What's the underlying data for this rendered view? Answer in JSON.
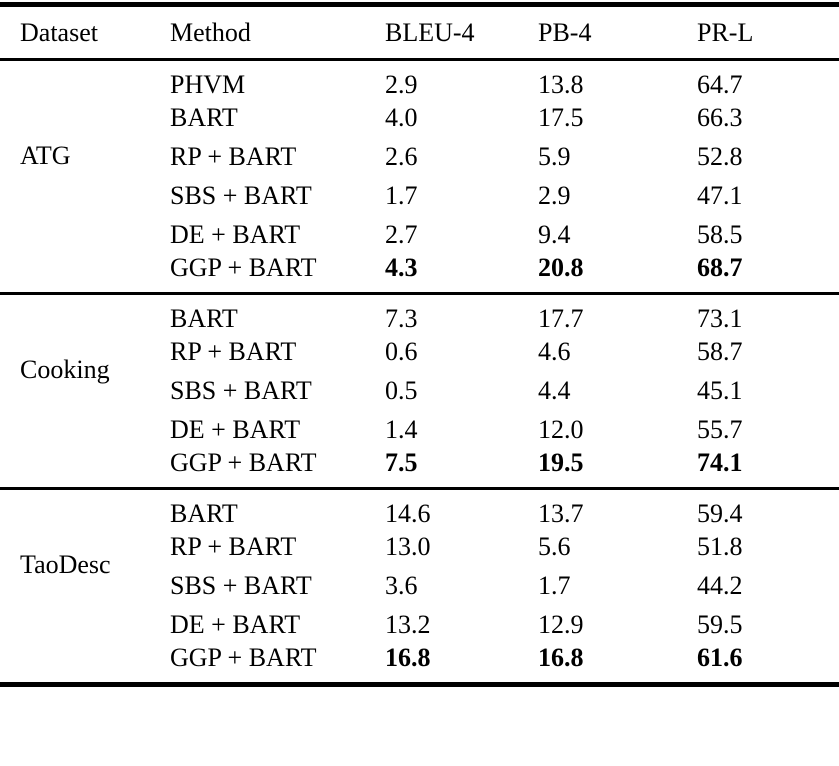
{
  "table": {
    "background": "#ffffff",
    "text_color": "#000000",
    "rule_color": "#000000",
    "columns": [
      "Dataset",
      "Method",
      "BLEU-4",
      "PB-4",
      "PR-L"
    ],
    "groups": [
      {
        "dataset": "ATG",
        "rows": [
          {
            "method": "PHVM",
            "values": [
              "2.9",
              "13.8",
              "64.7"
            ],
            "bold": false
          },
          {
            "method": "BART",
            "values": [
              "4.0",
              "17.5",
              "66.3"
            ],
            "bold": false
          },
          {
            "method": "RP + BART",
            "values": [
              "2.6",
              "5.9",
              "52.8"
            ],
            "bold": false
          },
          {
            "method": "SBS + BART",
            "values": [
              "1.7",
              "2.9",
              "47.1"
            ],
            "bold": false
          },
          {
            "method": "DE + BART",
            "values": [
              "2.7",
              "9.4",
              "58.5"
            ],
            "bold": false
          },
          {
            "method": "GGP + BART",
            "values": [
              "4.3",
              "20.8",
              "68.7"
            ],
            "bold": true
          }
        ]
      },
      {
        "dataset": "Cooking",
        "rows": [
          {
            "method": "BART",
            "values": [
              "7.3",
              "17.7",
              "73.1"
            ],
            "bold": false
          },
          {
            "method": "RP + BART",
            "values": [
              "0.6",
              "4.6",
              "58.7"
            ],
            "bold": false
          },
          {
            "method": "SBS + BART",
            "values": [
              "0.5",
              "4.4",
              "45.1"
            ],
            "bold": false
          },
          {
            "method": "DE + BART",
            "values": [
              "1.4",
              "12.0",
              "55.7"
            ],
            "bold": false
          },
          {
            "method": "GGP + BART",
            "values": [
              "7.5",
              "19.5",
              "74.1"
            ],
            "bold": true
          }
        ]
      },
      {
        "dataset": "TaoDesc",
        "rows": [
          {
            "method": "BART",
            "values": [
              "14.6",
              "13.7",
              "59.4"
            ],
            "bold": false
          },
          {
            "method": "RP + BART",
            "values": [
              "13.0",
              "5.6",
              "51.8"
            ],
            "bold": false
          },
          {
            "method": "SBS + BART",
            "values": [
              "3.6",
              "1.7",
              "44.2"
            ],
            "bold": false
          },
          {
            "method": "DE + BART",
            "values": [
              "13.2",
              "12.9",
              "59.5"
            ],
            "bold": false
          },
          {
            "method": "GGP + BART",
            "values": [
              "16.8",
              "16.8",
              "61.6"
            ],
            "bold": true
          }
        ]
      }
    ]
  }
}
